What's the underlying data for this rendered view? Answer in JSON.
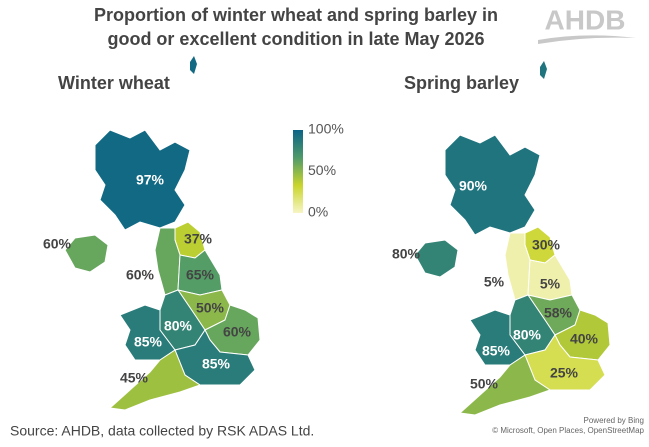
{
  "chart_data": {
    "type": "choropleth",
    "title": [
      "Proportion of winter wheat and spring barley in",
      "good or excellent condition in late May 2026"
    ],
    "logo": "AHDB",
    "colorbar": {
      "ylim": [
        0,
        100
      ],
      "yticks": [
        {
          "value": 100,
          "label": "100%"
        },
        {
          "value": 50,
          "label": "50%"
        },
        {
          "value": 0,
          "label": "0%"
        }
      ],
      "colors": [
        "#f7f5c4",
        "#c9d52b",
        "#4f9a6a",
        "#0b6487"
      ]
    },
    "maps": [
      {
        "title": "Winter wheat",
        "values": [
          97,
          60,
          37,
          60,
          65,
          50,
          80,
          60,
          85,
          85,
          45
        ],
        "value_labels": [
          "97%",
          "60%",
          "37%",
          "60%",
          "65%",
          "50%",
          "80%",
          "60%",
          "85%",
          "85%",
          "45%"
        ]
      },
      {
        "title": "Spring barley",
        "values": [
          90,
          80,
          30,
          5,
          5,
          58,
          80,
          40,
          85,
          25,
          50
        ],
        "value_labels": [
          "90%",
          "80%",
          "30%",
          "5%",
          "5%",
          "58%",
          "80%",
          "40%",
          "85%",
          "25%",
          "50%"
        ]
      }
    ],
    "source": "Source: AHDB, data collected by RSK ADAS Ltd.",
    "attribution": [
      "Powered by Bing",
      "© Microsoft, Open Places, OpenStreetMap"
    ]
  }
}
